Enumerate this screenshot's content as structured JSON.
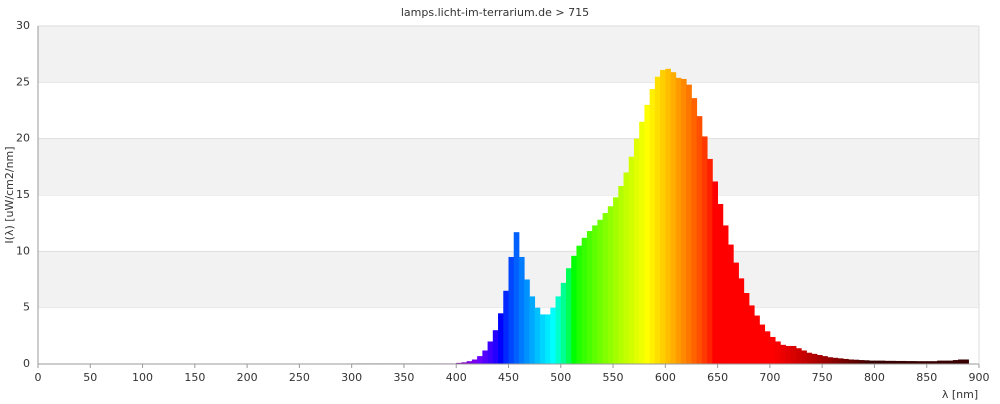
{
  "chart_data": {
    "type": "spectrum",
    "title": "lamps.licht-im-terrarium.de > 715",
    "x_label": "λ [nm]",
    "y_label": "I(λ)  [uW/cm2/nm]",
    "x": [
      300,
      305,
      310,
      315,
      320,
      325,
      330,
      335,
      340,
      345,
      350,
      355,
      360,
      365,
      370,
      375,
      380,
      385,
      390,
      395,
      400,
      405,
      410,
      415,
      420,
      425,
      430,
      435,
      440,
      445,
      450,
      455,
      460,
      465,
      470,
      475,
      480,
      485,
      490,
      495,
      500,
      505,
      510,
      515,
      520,
      525,
      530,
      535,
      540,
      545,
      550,
      555,
      560,
      565,
      570,
      575,
      580,
      585,
      590,
      595,
      600,
      605,
      610,
      615,
      620,
      625,
      630,
      635,
      640,
      645,
      650,
      655,
      660,
      665,
      670,
      675,
      680,
      685,
      690,
      695,
      700,
      705,
      710,
      715,
      720,
      725,
      730,
      735,
      740,
      745,
      750,
      755,
      760,
      765,
      770,
      775,
      780,
      785,
      790,
      795,
      800,
      805,
      810,
      815,
      820,
      825,
      830,
      835,
      840,
      845,
      850,
      855,
      860,
      865,
      870,
      875,
      880,
      885
    ],
    "values": [
      0.05,
      0.05,
      0.05,
      0.05,
      0.05,
      0.05,
      0.05,
      0.05,
      0.05,
      0.05,
      0.05,
      0.05,
      0.05,
      0.05,
      0.05,
      0.05,
      0.05,
      0.05,
      0.05,
      0.05,
      0.1,
      0.15,
      0.25,
      0.4,
      0.7,
      1.2,
      2.0,
      3.0,
      4.5,
      6.5,
      9.5,
      11.7,
      9.5,
      7.5,
      6.0,
      5.0,
      4.4,
      4.4,
      5.0,
      6.0,
      7.2,
      8.5,
      9.6,
      10.5,
      11.2,
      11.8,
      12.3,
      12.8,
      13.4,
      14.0,
      14.8,
      15.8,
      17.0,
      18.4,
      20.0,
      21.5,
      23.0,
      24.4,
      25.5,
      26.1,
      26.2,
      25.9,
      25.4,
      25.3,
      24.8,
      23.6,
      22.0,
      20.2,
      18.2,
      16.2,
      14.2,
      12.3,
      10.6,
      9.0,
      7.6,
      6.3,
      5.2,
      4.3,
      3.5,
      2.9,
      2.4,
      2.0,
      1.7,
      1.6,
      1.6,
      1.4,
      1.2,
      1.0,
      0.9,
      0.8,
      0.7,
      0.6,
      0.55,
      0.5,
      0.45,
      0.4,
      0.38,
      0.35,
      0.33,
      0.3,
      0.3,
      0.3,
      0.28,
      0.28,
      0.27,
      0.27,
      0.26,
      0.26,
      0.25,
      0.25,
      0.25,
      0.25,
      0.3,
      0.3,
      0.3,
      0.35,
      0.4,
      0.4
    ],
    "xlim": [
      0,
      900
    ],
    "xticks": [
      0,
      50,
      100,
      150,
      200,
      250,
      300,
      350,
      400,
      450,
      500,
      550,
      600,
      650,
      700,
      750,
      800,
      850,
      900
    ],
    "ylim": [
      0,
      30
    ],
    "yticks": [
      0,
      5,
      10,
      15,
      20,
      25,
      30
    ],
    "grid": true
  }
}
